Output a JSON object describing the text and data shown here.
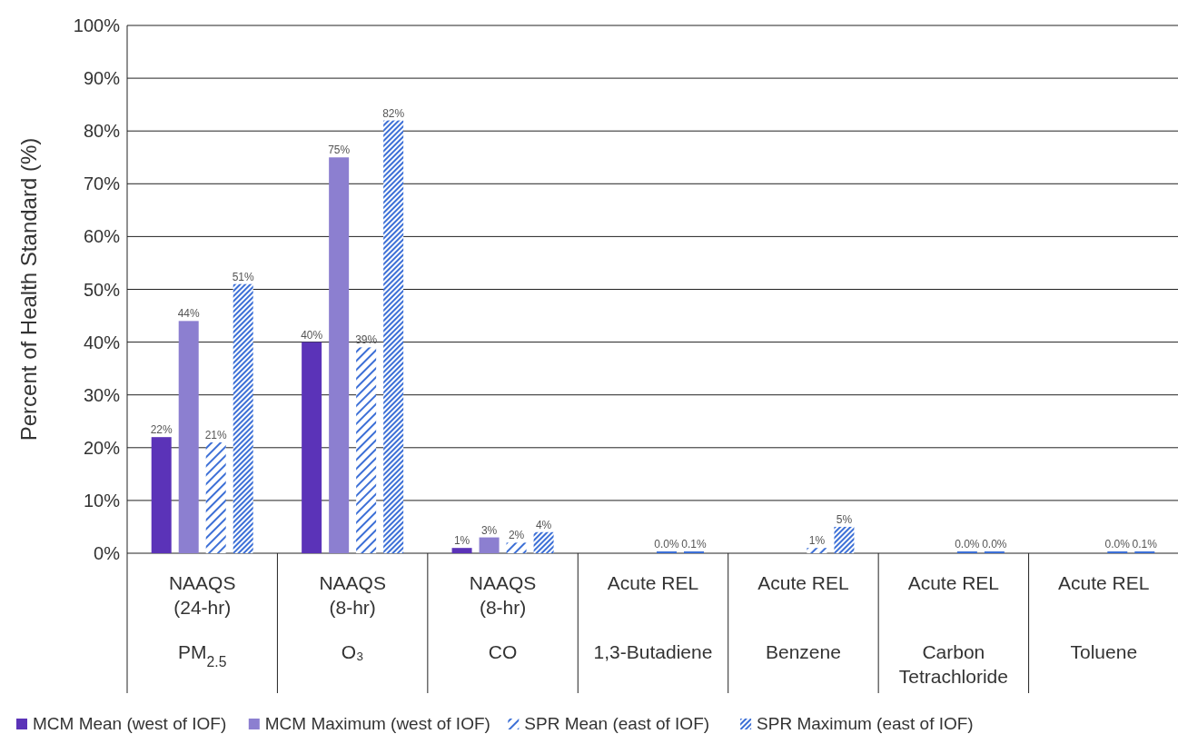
{
  "chart_data": {
    "type": "bar",
    "ylabel": "Percent of Health Standard (%)",
    "categories": [
      "NAAQS\n(24-hr)\n\nPM$_{2.5}$",
      "NAAQS\n(8-hr)\n\nO₃",
      "NAAQS\n(8-hr)\n\nCO",
      "Acute REL\n\n1,3-Butadiene",
      "Acute REL\n\nBenzene",
      "Acute REL\n\nCarbon\nTetrachloride",
      "Acute REL\n\nToluene"
    ],
    "series": [
      {
        "name": "MCM Mean (west of IOF)",
        "color": "#5b33b8",
        "values": [
          22,
          40,
          1,
          null,
          null,
          null,
          null
        ],
        "value_labels": [
          "22%",
          "40%",
          "1%",
          null,
          null,
          null,
          null
        ]
      },
      {
        "name": "MCM Maximum (west of IOF)",
        "color": "#8c7fd0",
        "values": [
          44,
          75,
          3,
          null,
          null,
          null,
          null
        ],
        "value_labels": [
          "44%",
          "75%",
          "3%",
          null,
          null,
          null,
          null
        ]
      },
      {
        "name": "SPR Mean (east of IOF)",
        "color": "#3c6fd6",
        "values": [
          21,
          39,
          2,
          0.0,
          1,
          0.0,
          0.0
        ],
        "value_labels": [
          "21%",
          "39%",
          "2%",
          "0.0%",
          "1%",
          "0.0%",
          "0.0%"
        ]
      },
      {
        "name": "SPR Maximum (east of IOF)",
        "color": "#3c6fd6",
        "values": [
          51,
          82,
          4,
          0.1,
          5,
          0.0,
          0.1
        ],
        "value_labels": [
          "51%",
          "82%",
          "4%",
          "0.1%",
          "5%",
          "0.0%",
          "0.1%"
        ]
      }
    ],
    "ylim": [
      0,
      100
    ],
    "yticks": [
      {
        "value": 0,
        "label": "0%"
      },
      {
        "value": 10,
        "label": "10%"
      },
      {
        "value": 20,
        "label": "20%"
      },
      {
        "value": 30,
        "label": "30%"
      },
      {
        "value": 40,
        "label": "40%"
      },
      {
        "value": 50,
        "label": "50%"
      },
      {
        "value": 60,
        "label": "60%"
      },
      {
        "value": 70,
        "label": "70%"
      },
      {
        "value": 80,
        "label": "80%"
      },
      {
        "value": 90,
        "label": "90%"
      },
      {
        "value": 100,
        "label": "100%"
      }
    ],
    "grid": "y",
    "legend": "bottom"
  }
}
